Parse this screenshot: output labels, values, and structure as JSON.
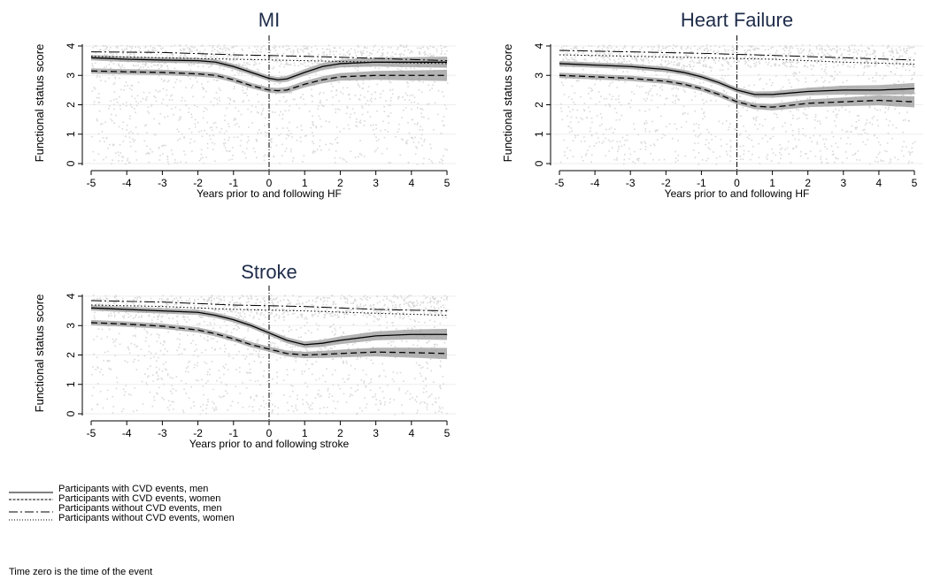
{
  "chart_data": [
    {
      "type": "line",
      "title": "MI",
      "xlabel": "Years prior to and following HF",
      "ylabel": "Functional status score",
      "x_ticks": [
        "-5",
        "-4",
        "-3",
        "-2",
        "-1",
        "0",
        "1",
        "2",
        "3",
        "4",
        "5"
      ],
      "y_ticks": [
        "0",
        "1",
        "2",
        "3",
        "4"
      ],
      "xlim": [
        -5,
        5
      ],
      "ylim": [
        0,
        4
      ],
      "series": [
        {
          "style": "solid",
          "band": true,
          "x": [
            -5,
            -4,
            -3,
            -2,
            -1.5,
            -1,
            -0.5,
            0,
            0.25,
            0.5,
            1,
            1.5,
            2,
            3,
            4,
            5
          ],
          "y": [
            3.6,
            3.55,
            3.52,
            3.5,
            3.45,
            3.3,
            3.1,
            2.9,
            2.85,
            2.88,
            3.1,
            3.3,
            3.4,
            3.45,
            3.45,
            3.45
          ]
        },
        {
          "style": "dashed",
          "band": true,
          "x": [
            -5,
            -4,
            -3,
            -2,
            -1.5,
            -1,
            -0.5,
            0,
            0.25,
            0.5,
            1,
            1.5,
            2,
            3,
            4,
            5
          ],
          "y": [
            3.15,
            3.12,
            3.1,
            3.05,
            3.0,
            2.85,
            2.65,
            2.5,
            2.48,
            2.5,
            2.7,
            2.85,
            2.95,
            3.0,
            3.0,
            3.0
          ]
        },
        {
          "style": "dashdot",
          "band": false,
          "x": [
            -5,
            -3,
            -1,
            1,
            3,
            5
          ],
          "y": [
            3.8,
            3.78,
            3.7,
            3.65,
            3.58,
            3.5
          ]
        },
        {
          "style": "dotted",
          "band": false,
          "x": [
            -5,
            -3,
            -1,
            1,
            3,
            5
          ],
          "y": [
            3.65,
            3.6,
            3.55,
            3.5,
            3.45,
            3.4
          ]
        }
      ]
    },
    {
      "type": "line",
      "title": "Heart Failure",
      "xlabel": "Years prior to and following HF",
      "ylabel": "Functional status score",
      "x_ticks": [
        "-5",
        "-4",
        "-3",
        "-2",
        "-1",
        "0",
        "1",
        "2",
        "3",
        "4",
        "5"
      ],
      "y_ticks": [
        "0",
        "1",
        "2",
        "3",
        "4"
      ],
      "xlim": [
        -5,
        5
      ],
      "ylim": [
        0,
        4
      ],
      "series": [
        {
          "style": "solid",
          "band": true,
          "x": [
            -5,
            -4,
            -3,
            -2,
            -1.5,
            -1,
            -0.5,
            0,
            0.5,
            1,
            1.5,
            2,
            3,
            4,
            5
          ],
          "y": [
            3.4,
            3.35,
            3.3,
            3.2,
            3.1,
            2.95,
            2.75,
            2.5,
            2.35,
            2.35,
            2.4,
            2.45,
            2.5,
            2.5,
            2.55
          ]
        },
        {
          "style": "dashed",
          "band": true,
          "x": [
            -5,
            -4,
            -3,
            -2,
            -1.5,
            -1,
            -0.5,
            0,
            0.5,
            1,
            1.5,
            2,
            3,
            4,
            5
          ],
          "y": [
            3.0,
            2.95,
            2.9,
            2.8,
            2.7,
            2.55,
            2.35,
            2.1,
            1.95,
            1.92,
            1.98,
            2.05,
            2.1,
            2.15,
            2.1
          ]
        },
        {
          "style": "dashdot",
          "band": false,
          "x": [
            -5,
            -3,
            -1,
            1,
            3,
            5
          ],
          "y": [
            3.85,
            3.8,
            3.75,
            3.68,
            3.6,
            3.52
          ]
        },
        {
          "style": "dotted",
          "band": false,
          "x": [
            -5,
            -3,
            -1,
            1,
            3,
            5
          ],
          "y": [
            3.7,
            3.65,
            3.6,
            3.55,
            3.45,
            3.38
          ]
        }
      ]
    },
    {
      "type": "line",
      "title": "Stroke",
      "xlabel": "Years prior to and following stroke",
      "ylabel": "Functional status score",
      "x_ticks": [
        "-5",
        "-4",
        "-3",
        "-2",
        "-1",
        "0",
        "1",
        "2",
        "3",
        "4",
        "5"
      ],
      "y_ticks": [
        "0",
        "1",
        "2",
        "3",
        "4"
      ],
      "xlim": [
        -5,
        5
      ],
      "ylim": [
        0,
        4
      ],
      "series": [
        {
          "style": "solid",
          "band": true,
          "x": [
            -5,
            -4,
            -3,
            -2,
            -1.5,
            -1,
            -0.5,
            0,
            0.5,
            1,
            1.5,
            2,
            3,
            4,
            5
          ],
          "y": [
            3.6,
            3.55,
            3.5,
            3.45,
            3.35,
            3.2,
            3.0,
            2.75,
            2.5,
            2.35,
            2.4,
            2.5,
            2.65,
            2.7,
            2.7
          ]
        },
        {
          "style": "dashed",
          "band": true,
          "x": [
            -5,
            -4,
            -3,
            -2,
            -1.5,
            -1,
            -0.5,
            0,
            0.5,
            1,
            1.5,
            2,
            3,
            4,
            5
          ],
          "y": [
            3.1,
            3.05,
            2.98,
            2.85,
            2.72,
            2.55,
            2.35,
            2.2,
            2.05,
            2.0,
            2.02,
            2.05,
            2.1,
            2.08,
            2.05
          ]
        },
        {
          "style": "dashdot",
          "band": false,
          "x": [
            -5,
            -3,
            -1,
            1,
            3,
            5
          ],
          "y": [
            3.85,
            3.8,
            3.7,
            3.65,
            3.55,
            3.5
          ]
        },
        {
          "style": "dotted",
          "band": false,
          "x": [
            -5,
            -3,
            -1,
            1,
            3,
            5
          ],
          "y": [
            3.7,
            3.65,
            3.55,
            3.5,
            3.42,
            3.35
          ]
        }
      ]
    }
  ],
  "legend": [
    {
      "label": "Participants with CVD events, men",
      "style": "solid"
    },
    {
      "label": "Participants with CVD events, women",
      "style": "dashed"
    },
    {
      "label": "Participants without CVD events, men",
      "style": "dashdot"
    },
    {
      "label": "Participants without CVD events, women",
      "style": "dotted"
    }
  ],
  "footnote": "Time zero is the time of the event",
  "colors": {
    "line": "#000000",
    "band": "#999999",
    "scatter": "#d9d9d9",
    "title": "#1f2d4a"
  }
}
